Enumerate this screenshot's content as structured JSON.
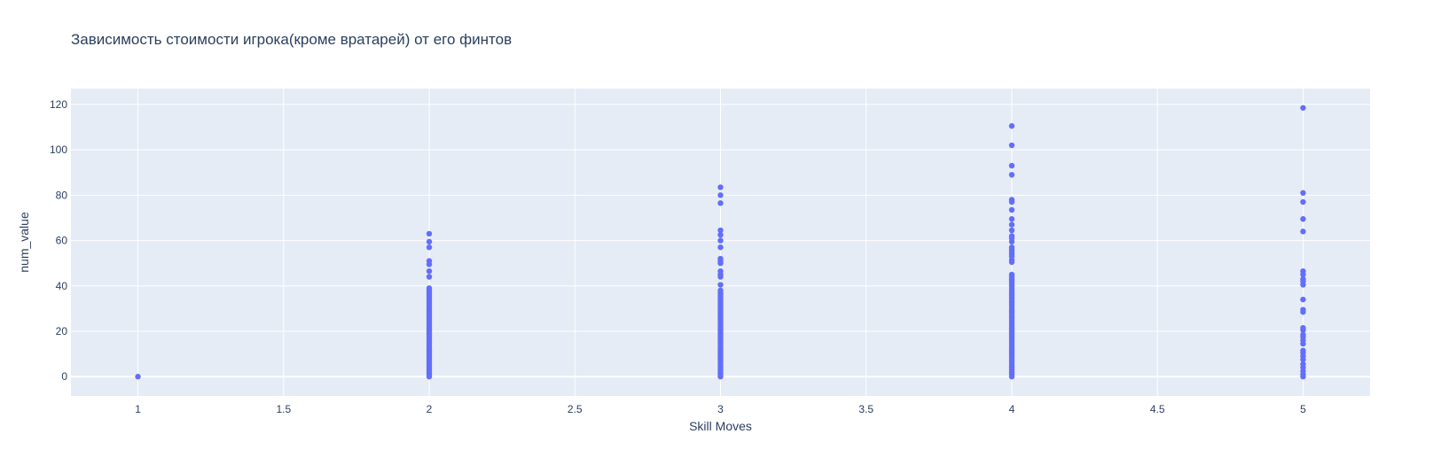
{
  "colors": {
    "plot_bg": "#e5ecf6",
    "grid": "#ffffff",
    "marker": "#636efa",
    "text": "#2a3f5f"
  },
  "chart_data": {
    "type": "scatter",
    "title": "Зависимость стоимости игрока(кроме вратарей) от его финтов",
    "xlabel": "Skill Moves",
    "ylabel": "num_value",
    "xlim": [
      0.77,
      5.23
    ],
    "ylim": [
      -8.5,
      127
    ],
    "x_ticks": [
      "1",
      "1.5",
      "2",
      "2.5",
      "3",
      "3.5",
      "4",
      "4.5",
      "5"
    ],
    "y_ticks": [
      "0",
      "20",
      "40",
      "60",
      "80",
      "100",
      "120"
    ],
    "grid": true,
    "series": [
      {
        "marker_color": "#636efa",
        "points": [
          [
            1,
            0
          ],
          [
            2,
            63
          ],
          [
            2,
            59.5
          ],
          [
            2,
            57
          ],
          [
            2,
            51
          ],
          [
            2,
            49.5
          ],
          [
            2,
            46.5
          ],
          [
            2,
            44
          ],
          [
            2,
            39
          ],
          [
            2,
            38
          ],
          [
            2,
            37
          ],
          [
            2,
            36
          ],
          [
            2,
            35
          ],
          [
            2,
            34
          ],
          [
            2,
            33
          ],
          [
            2,
            32
          ],
          [
            2,
            31
          ],
          [
            2,
            30
          ],
          [
            2,
            29
          ],
          [
            2,
            28
          ],
          [
            2,
            27
          ],
          [
            2,
            26
          ],
          [
            2,
            25
          ],
          [
            2,
            24
          ],
          [
            2,
            23
          ],
          [
            2,
            22
          ],
          [
            2,
            21
          ],
          [
            2,
            20
          ],
          [
            2,
            19
          ],
          [
            2,
            18
          ],
          [
            2,
            17
          ],
          [
            2,
            16
          ],
          [
            2,
            15
          ],
          [
            2,
            14
          ],
          [
            2,
            13
          ],
          [
            2,
            12
          ],
          [
            2,
            11
          ],
          [
            2,
            10
          ],
          [
            2,
            9
          ],
          [
            2,
            8
          ],
          [
            2,
            7
          ],
          [
            2,
            6
          ],
          [
            2,
            5
          ],
          [
            2,
            4
          ],
          [
            2,
            3
          ],
          [
            2,
            2
          ],
          [
            2,
            1
          ],
          [
            2,
            0
          ],
          [
            3,
            83.5
          ],
          [
            3,
            80
          ],
          [
            3,
            76.5
          ],
          [
            3,
            64.5
          ],
          [
            3,
            62.5
          ],
          [
            3,
            60
          ],
          [
            3,
            57
          ],
          [
            3,
            52
          ],
          [
            3,
            51
          ],
          [
            3,
            50
          ],
          [
            3,
            46.5
          ],
          [
            3,
            45
          ],
          [
            3,
            44
          ],
          [
            3,
            40.5
          ],
          [
            3,
            38
          ],
          [
            3,
            37
          ],
          [
            3,
            36
          ],
          [
            3,
            35
          ],
          [
            3,
            34
          ],
          [
            3,
            33
          ],
          [
            3,
            32
          ],
          [
            3,
            31
          ],
          [
            3,
            30
          ],
          [
            3,
            29
          ],
          [
            3,
            28
          ],
          [
            3,
            27
          ],
          [
            3,
            26
          ],
          [
            3,
            25
          ],
          [
            3,
            24
          ],
          [
            3,
            23
          ],
          [
            3,
            22
          ],
          [
            3,
            21
          ],
          [
            3,
            20
          ],
          [
            3,
            19
          ],
          [
            3,
            18
          ],
          [
            3,
            17
          ],
          [
            3,
            16
          ],
          [
            3,
            15
          ],
          [
            3,
            14
          ],
          [
            3,
            13
          ],
          [
            3,
            12
          ],
          [
            3,
            11
          ],
          [
            3,
            10
          ],
          [
            3,
            9
          ],
          [
            3,
            8
          ],
          [
            3,
            7
          ],
          [
            3,
            6
          ],
          [
            3,
            5
          ],
          [
            3,
            4
          ],
          [
            3,
            3
          ],
          [
            3,
            2
          ],
          [
            3,
            1
          ],
          [
            3,
            0
          ],
          [
            4,
            110.5
          ],
          [
            4,
            102
          ],
          [
            4,
            93
          ],
          [
            4,
            89
          ],
          [
            4,
            78
          ],
          [
            4,
            77
          ],
          [
            4,
            73.5
          ],
          [
            4,
            69.5
          ],
          [
            4,
            67
          ],
          [
            4,
            64.5
          ],
          [
            4,
            62
          ],
          [
            4,
            61
          ],
          [
            4,
            59.5
          ],
          [
            4,
            57
          ],
          [
            4,
            56
          ],
          [
            4,
            55
          ],
          [
            4,
            54
          ],
          [
            4,
            53
          ],
          [
            4,
            51.5
          ],
          [
            4,
            50.5
          ],
          [
            4,
            45
          ],
          [
            4,
            44
          ],
          [
            4,
            43
          ],
          [
            4,
            42
          ],
          [
            4,
            41
          ],
          [
            4,
            40
          ],
          [
            4,
            39
          ],
          [
            4,
            38
          ],
          [
            4,
            37
          ],
          [
            4,
            36
          ],
          [
            4,
            35
          ],
          [
            4,
            34
          ],
          [
            4,
            33
          ],
          [
            4,
            32
          ],
          [
            4,
            31
          ],
          [
            4,
            30
          ],
          [
            4,
            29
          ],
          [
            4,
            28
          ],
          [
            4,
            27
          ],
          [
            4,
            26
          ],
          [
            4,
            25
          ],
          [
            4,
            24
          ],
          [
            4,
            23
          ],
          [
            4,
            22
          ],
          [
            4,
            21
          ],
          [
            4,
            20
          ],
          [
            4,
            19
          ],
          [
            4,
            18
          ],
          [
            4,
            17
          ],
          [
            4,
            16
          ],
          [
            4,
            15
          ],
          [
            4,
            14
          ],
          [
            4,
            13
          ],
          [
            4,
            12
          ],
          [
            4,
            11
          ],
          [
            4,
            10
          ],
          [
            4,
            9
          ],
          [
            4,
            8
          ],
          [
            4,
            7
          ],
          [
            4,
            6
          ],
          [
            4,
            5
          ],
          [
            4,
            4
          ],
          [
            4,
            3
          ],
          [
            4,
            2
          ],
          [
            4,
            1
          ],
          [
            4,
            0
          ],
          [
            5,
            118.5
          ],
          [
            5,
            81
          ],
          [
            5,
            77
          ],
          [
            5,
            69.5
          ],
          [
            5,
            64
          ],
          [
            5,
            46.5
          ],
          [
            5,
            45
          ],
          [
            5,
            43
          ],
          [
            5,
            42
          ],
          [
            5,
            40.5
          ],
          [
            5,
            34
          ],
          [
            5,
            29.5
          ],
          [
            5,
            28.5
          ],
          [
            5,
            21.5
          ],
          [
            5,
            20.5
          ],
          [
            5,
            18.5
          ],
          [
            5,
            17.5
          ],
          [
            5,
            16
          ],
          [
            5,
            14.5
          ],
          [
            5,
            11.5
          ],
          [
            5,
            10.5
          ],
          [
            5,
            9
          ],
          [
            5,
            7.5
          ],
          [
            5,
            5.5
          ],
          [
            5,
            4
          ],
          [
            5,
            2.5
          ],
          [
            5,
            1
          ],
          [
            5,
            0
          ]
        ]
      }
    ]
  }
}
